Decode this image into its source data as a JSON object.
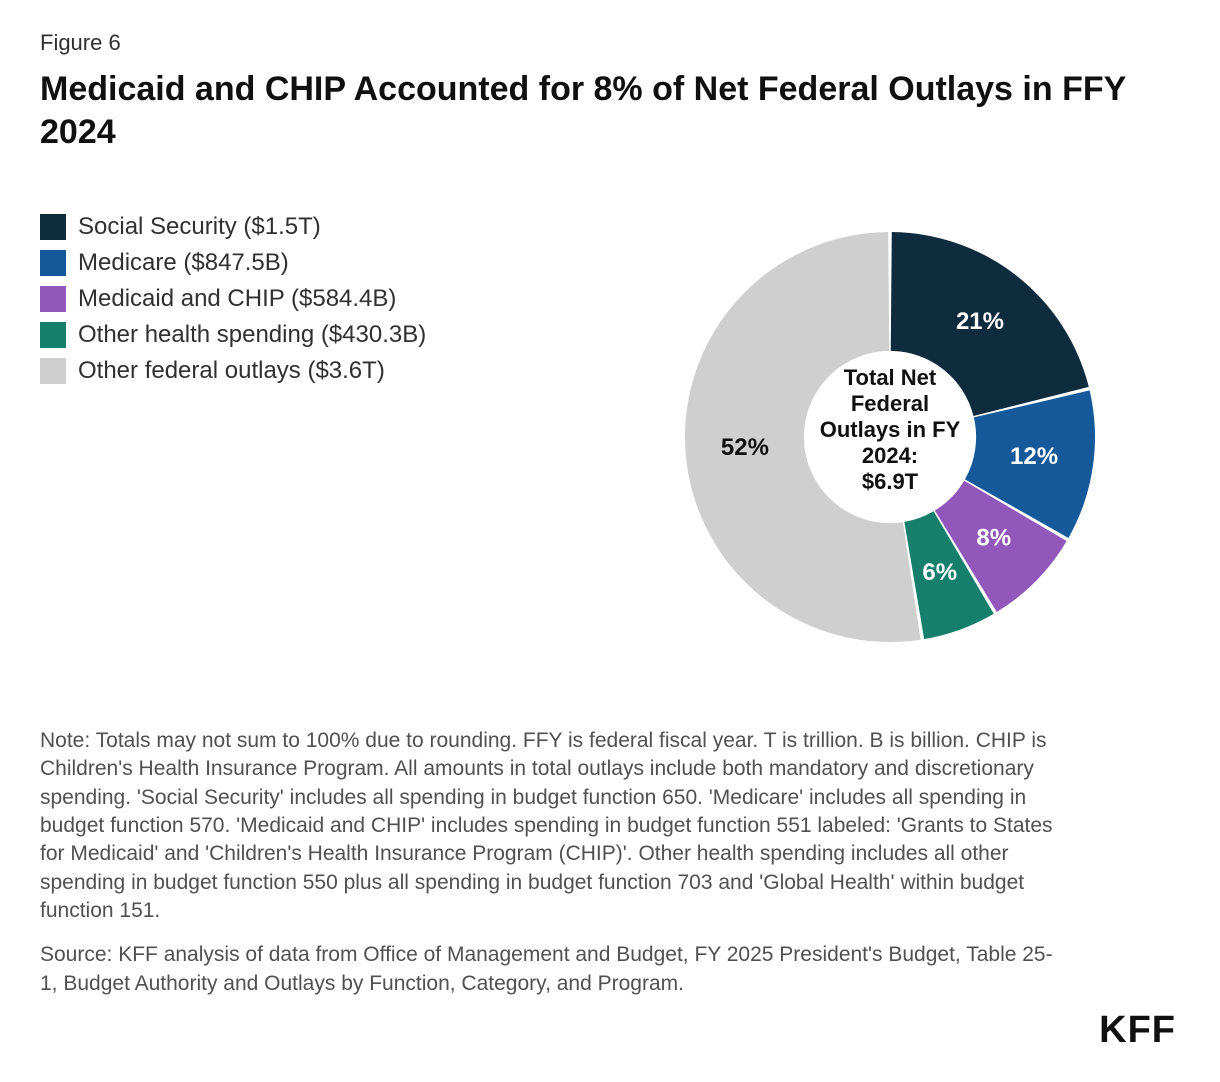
{
  "figure_label": "Figure 6",
  "title": "Medicaid and CHIP Accounted for 8% of Net Federal Outlays in FFY 2024",
  "chart": {
    "type": "donut",
    "center_lines": [
      "Total Net",
      "Federal",
      "Outlays in FY",
      "2024:",
      "$6.9T"
    ],
    "center_fontsize": 22,
    "background_color": "#ffffff",
    "inner_radius_pct": 42,
    "outer_radius_pct": 100,
    "slices": [
      {
        "key": "social_security",
        "label": "Social Security ($1.5T)",
        "percent": 21,
        "percent_label": "21%",
        "color": "#0f2b3e",
        "label_fill": "#ffffff"
      },
      {
        "key": "medicare",
        "label": "Medicare ($847.5B)",
        "percent": 12,
        "percent_label": "12%",
        "color": "#15599a",
        "label_fill": "#ffffff"
      },
      {
        "key": "medicaid_chip",
        "label": "Medicaid and CHIP ($584.4B)",
        "percent": 8,
        "percent_label": "8%",
        "color": "#9257bb",
        "label_fill": "#ffffff"
      },
      {
        "key": "other_health",
        "label": "Other health spending ($430.3B)",
        "percent": 6,
        "percent_label": "6%",
        "color": "#157f6c",
        "label_fill": "#ffffff"
      },
      {
        "key": "other_federal_outlays",
        "label": "Other federal outlays ($3.6T)",
        "percent": 52,
        "percent_label": "52%",
        "color": "#cfcfcf",
        "label_fill": "#101010"
      }
    ],
    "legend_fontsize": 24,
    "slice_label_fontsize": 24
  },
  "note": "Note: Totals may not sum to 100% due to rounding. FFY is federal fiscal year. T is trillion. B is billion. CHIP is Children's Health Insurance Program. All amounts in total outlays include both mandatory and discretionary spending. 'Social Security' includes all spending in budget function 650. 'Medicare' includes all spending in budget function 570. 'Medicaid and CHIP' includes spending in budget function 551 labeled: 'Grants to States for Medicaid' and 'Children's Health Insurance Program (CHIP)'. Other health spending includes all other spending in budget function 550 plus all spending in budget function 703 and 'Global Health' within budget function 151.",
  "source": "Source: KFF analysis of data from Office of Management and Budget, FY 2025 President's Budget, Table 25-1, Budget Authority and Outlays by Function, Category, and Program.",
  "logo_text": "KFF",
  "colors": {
    "text_primary": "#101010",
    "text_body": "#303030",
    "text_muted": "#505050",
    "background": "#ffffff"
  }
}
